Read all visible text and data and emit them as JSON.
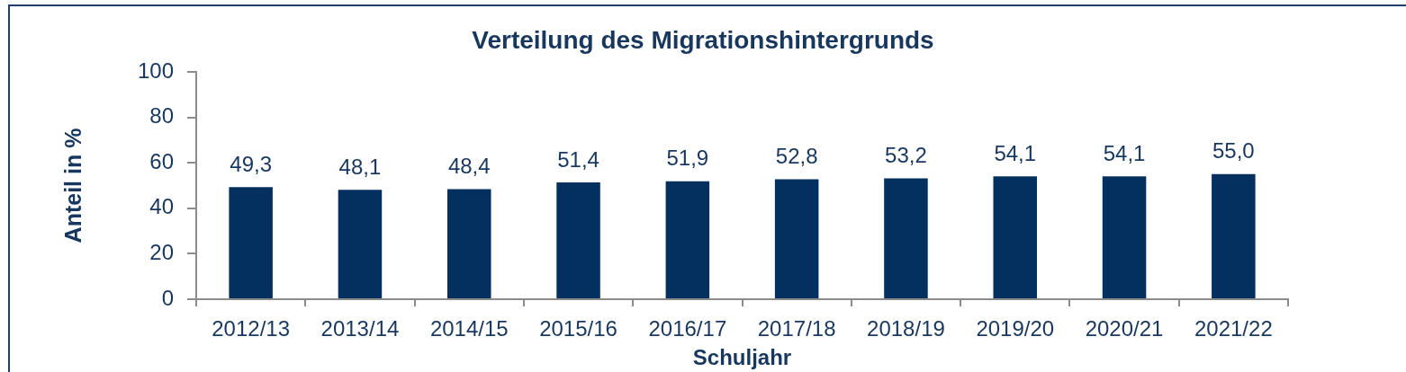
{
  "chart_data": {
    "type": "bar",
    "title": "Verteilung des Migrationshintergrunds",
    "xlabel": "Schuljahr",
    "ylabel": "Anteil in %",
    "categories": [
      "2012/13",
      "2013/14",
      "2014/15",
      "2015/16",
      "2016/17",
      "2017/18",
      "2018/19",
      "2019/20",
      "2020/21",
      "2021/22"
    ],
    "values": [
      49.3,
      48.1,
      48.4,
      51.4,
      51.9,
      52.8,
      53.2,
      54.1,
      54.1,
      55.0
    ],
    "value_labels": [
      "49,3",
      "48,1",
      "48,4",
      "51,4",
      "51,9",
      "52,8",
      "53,2",
      "54,1",
      "54,1",
      "55,0"
    ],
    "color": "#03305f",
    "ylim": [
      0,
      100
    ],
    "yticks": [
      0,
      20,
      40,
      60,
      80,
      100
    ],
    "grid": false,
    "legend": false
  }
}
